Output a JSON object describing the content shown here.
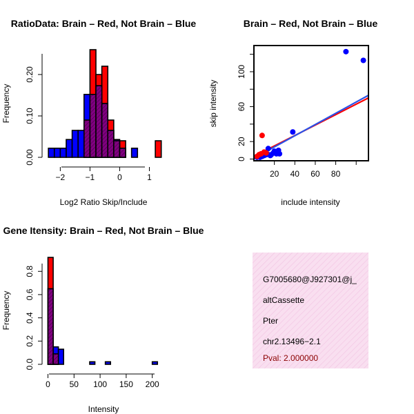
{
  "colors": {
    "red": "#ff0000",
    "blue": "#0000ff",
    "overlap": "#800080",
    "hatch": "#000000",
    "line_red": "#ff0000",
    "line_blue": "#2a52e8",
    "info_bg": "#f9dff0",
    "info_stripe": "#f3c8e4",
    "pval": "#8b0000"
  },
  "chart_data": [
    {
      "id": "ratio_hist",
      "type": "bar",
      "title": "RatioData: Brain – Red, Not Brain – Blue",
      "xlabel": "Log2 Ratio Skip/Include",
      "ylabel": "Frequency",
      "xlim": [
        -2.45,
        1.5
      ],
      "ylim": [
        0,
        0.27
      ],
      "xticks": [
        -2,
        -1,
        0,
        1
      ],
      "xtick_labels": [
        "−2",
        "−1",
        "0",
        "1"
      ],
      "yticks": [
        0.0,
        0.1,
        0.2
      ],
      "ytick_labels": [
        "0.00",
        "0.10",
        "0.20"
      ],
      "bin_width": 0.2,
      "series": [
        {
          "name": "Brain",
          "color": "red",
          "bins": [
            [
              -1.2,
              0.09
            ],
            [
              -1.0,
              0.26
            ],
            [
              -0.8,
              0.2
            ],
            [
              -0.6,
              0.22
            ],
            [
              -0.4,
              0.09
            ],
            [
              -0.2,
              0.04
            ],
            [
              0.0,
              0.04
            ],
            [
              1.2,
              0.04
            ]
          ]
        },
        {
          "name": "Not Brain",
          "color": "blue",
          "bins": [
            [
              -2.4,
              0.022
            ],
            [
              -2.2,
              0.022
            ],
            [
              -2.0,
              0.022
            ],
            [
              -1.8,
              0.043
            ],
            [
              -1.6,
              0.065
            ],
            [
              -1.4,
              0.065
            ],
            [
              -1.2,
              0.152
            ],
            [
              -1.0,
              0.152
            ],
            [
              -0.8,
              0.173
            ],
            [
              -0.6,
              0.13
            ],
            [
              -0.4,
              0.065
            ],
            [
              -0.2,
              0.043
            ],
            [
              0.0,
              0.022
            ],
            [
              0.4,
              0.022
            ]
          ]
        }
      ]
    },
    {
      "id": "scatter",
      "type": "scatter",
      "title": "Brain – Red, Not Brain – Blue",
      "xlabel": "include intensity",
      "ylabel": "skip intensity",
      "xlim": [
        0,
        112
      ],
      "ylim": [
        -2,
        130
      ],
      "xticks": [
        20,
        40,
        60,
        80
      ],
      "xtick_labels": [
        "20",
        "40",
        "60",
        "80"
      ],
      "yticks": [
        0,
        20,
        60,
        100
      ],
      "ytick_labels": [
        "0",
        "20",
        "60",
        "100"
      ],
      "series": [
        {
          "name": "Not Brain",
          "color": "blue",
          "points": [
            [
              90,
              123
            ],
            [
              107,
              113
            ],
            [
              38,
              31
            ],
            [
              14,
              12
            ],
            [
              20,
              9
            ],
            [
              24,
              10
            ],
            [
              22,
              6
            ],
            [
              17,
              5
            ],
            [
              13,
              6
            ],
            [
              11,
              7
            ],
            [
              9,
              6
            ],
            [
              7,
              5
            ],
            [
              5,
              4
            ],
            [
              4,
              3
            ],
            [
              6,
              2
            ],
            [
              8,
              3
            ],
            [
              10,
              4
            ],
            [
              12,
              5
            ],
            [
              16,
              4
            ],
            [
              3,
              2
            ],
            [
              25,
              6
            ],
            [
              19,
              7
            ]
          ]
        },
        {
          "name": "Brain",
          "color": "red",
          "points": [
            [
              8,
              27
            ],
            [
              3,
              3
            ],
            [
              5,
              5
            ],
            [
              7,
              6
            ],
            [
              10,
              8
            ],
            [
              12,
              7
            ]
          ]
        }
      ],
      "fit_lines": [
        {
          "name": "Brain fit",
          "color": "line_red",
          "x": [
            0,
            112
          ],
          "y": [
            3,
            70
          ]
        },
        {
          "name": "Not Brain fit",
          "color": "line_blue",
          "x": [
            0,
            112
          ],
          "y": [
            1,
            73
          ]
        }
      ]
    },
    {
      "id": "intensity_hist",
      "type": "bar",
      "title": "Gene Itensity: Brain – Red, Not Brain – Blue",
      "xlabel": "Intensity",
      "ylabel": "Frequency",
      "xlim": [
        -2,
        215
      ],
      "ylim": [
        0,
        0.95
      ],
      "xticks": [
        0,
        50,
        100,
        150,
        200
      ],
      "xtick_labels": [
        "0",
        "50",
        "100",
        "150",
        "200"
      ],
      "yticks": [
        0.0,
        0.2,
        0.4,
        0.6,
        0.8
      ],
      "ytick_labels": [
        "0.0",
        "0.2",
        "0.4",
        "0.6",
        "0.8"
      ],
      "bin_width": 10,
      "series": [
        {
          "name": "Brain",
          "color": "red",
          "bins": [
            [
              0,
              0.92
            ],
            [
              10,
              0.09
            ]
          ]
        },
        {
          "name": "Not Brain",
          "color": "blue",
          "bins": [
            [
              0,
              0.65
            ],
            [
              10,
              0.15
            ],
            [
              20,
              0.13
            ],
            [
              80,
              0.022
            ],
            [
              110,
              0.022
            ],
            [
              200,
              0.022
            ]
          ]
        }
      ]
    }
  ],
  "info_panel": {
    "line1": "G7005680@J927301@j_",
    "line2": "altCassette",
    "line3": "Pter",
    "line4": "chr2.13496−2.1",
    "pval": "Pval: 2.000000"
  }
}
